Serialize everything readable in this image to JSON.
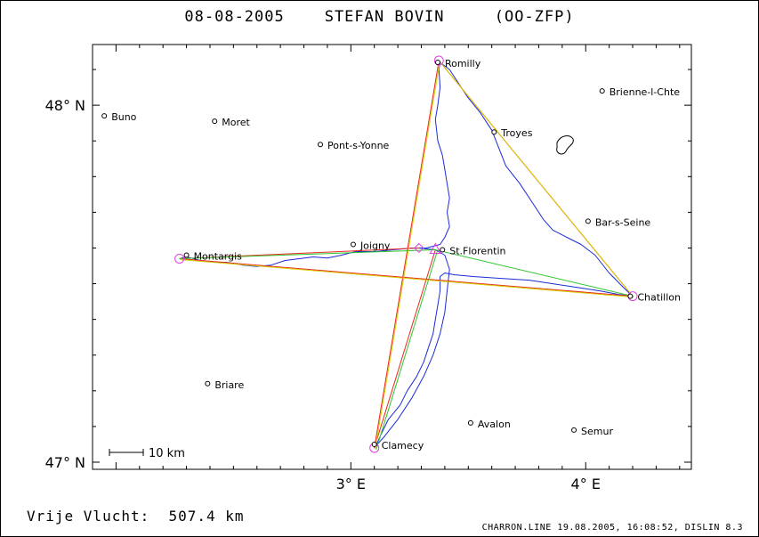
{
  "title": {
    "date": "08-08-2005",
    "pilot": "STEFAN BOVIN",
    "registration": "(OO-ZFP)"
  },
  "summary": {
    "label": "Vrije Vlucht:",
    "distance": "507.4 km"
  },
  "footer": "CHARRON.LINE 19.08.2005, 16:08:52, DISLIN 8.3",
  "map": {
    "lon_range": [
      1.9,
      4.45
    ],
    "lat_range": [
      46.98,
      48.17
    ],
    "lat_labels": [
      {
        "value": 48.0,
        "text": "48° N"
      },
      {
        "value": 47.0,
        "text": "47° N"
      }
    ],
    "lon_labels": [
      {
        "value": 3.0,
        "text": "3° E"
      },
      {
        "value": 4.0,
        "text": "4° E"
      }
    ],
    "scale_bar": "10 km",
    "towns": [
      {
        "name": "Buno",
        "lon": 1.95,
        "lat": 47.97
      },
      {
        "name": "Moret",
        "lon": 2.42,
        "lat": 47.955
      },
      {
        "name": "Pont-s-Yonne",
        "lon": 2.87,
        "lat": 47.89
      },
      {
        "name": "Romilly",
        "lon": 3.37,
        "lat": 48.12
      },
      {
        "name": "Troyes",
        "lon": 3.61,
        "lat": 47.925
      },
      {
        "name": "Brienne-l-Chte",
        "lon": 4.07,
        "lat": 48.04
      },
      {
        "name": "Bar-s-Seine",
        "lon": 4.01,
        "lat": 47.675
      },
      {
        "name": "Joigny",
        "lon": 3.01,
        "lat": 47.61
      },
      {
        "name": "St.Florentin",
        "lon": 3.39,
        "lat": 47.595
      },
      {
        "name": "Montargis",
        "lon": 2.3,
        "lat": 47.58
      },
      {
        "name": "Chatillon",
        "lon": 4.19,
        "lat": 47.465
      },
      {
        "name": "Briare",
        "lon": 2.39,
        "lat": 47.22
      },
      {
        "name": "Avalon",
        "lon": 3.51,
        "lat": 47.11
      },
      {
        "name": "Semur",
        "lon": 3.95,
        "lat": 47.09
      },
      {
        "name": "Clamecy",
        "lon": 3.1,
        "lat": 47.05
      }
    ],
    "turnpoints": [
      {
        "name": "Romilly",
        "lon": 3.375,
        "lat": 48.125
      },
      {
        "name": "Montargis",
        "lon": 2.27,
        "lat": 47.57
      },
      {
        "name": "Chatillon",
        "lon": 4.2,
        "lat": 47.465
      },
      {
        "name": "Clamecy",
        "lon": 3.1,
        "lat": 47.04
      },
      {
        "name": "St.Florentin",
        "lon": 3.36,
        "lat": 47.595
      },
      {
        "name": "Joigny",
        "lon": 3.29,
        "lat": 47.6
      }
    ],
    "colors": {
      "track": "#1a2bd6",
      "route_red": "#e8281e",
      "route_yellow": "#d8d000",
      "route_green": "#2fc62f",
      "turnpoint": "#e040e0",
      "axis": "#000000"
    }
  }
}
